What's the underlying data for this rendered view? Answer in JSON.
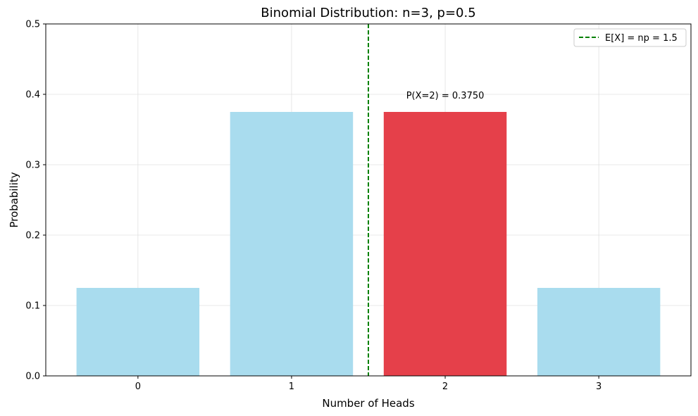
{
  "chart_data": {
    "type": "bar",
    "title": "Binomial Distribution: n=3, p=0.5",
    "xlabel": "Number of Heads",
    "ylabel": "Probability",
    "categories": [
      "0",
      "1",
      "2",
      "3"
    ],
    "x": [
      0,
      1,
      2,
      3
    ],
    "values": [
      0.125,
      0.375,
      0.375,
      0.125
    ],
    "highlight_index": 2,
    "highlight_annotation": "P(X=2) = 0.3750",
    "xlim": [
      -0.6,
      3.6
    ],
    "ylim": [
      0,
      0.5
    ],
    "yticks": [
      0.0,
      0.1,
      0.2,
      0.3,
      0.4,
      0.5
    ],
    "ytick_labels": [
      "0.0",
      "0.1",
      "0.2",
      "0.3",
      "0.4",
      "0.5"
    ],
    "bar_width": 0.8,
    "expected_value_line": {
      "x": 1.5,
      "label": "E[X] = np = 1.5",
      "style": "dashed",
      "color": "#008000"
    },
    "grid": true,
    "legend": {
      "position": "top-right",
      "entries": [
        "E[X] = np = 1.5"
      ]
    },
    "colors": {
      "bar": "#a9dcee",
      "highlight": "#e5404a",
      "mean_line": "#008000"
    }
  }
}
